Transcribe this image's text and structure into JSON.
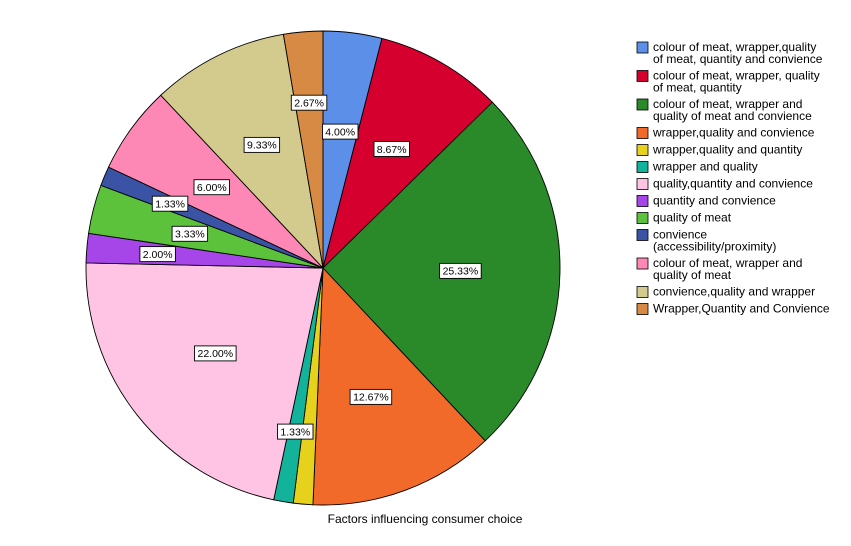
{
  "chart_data": {
    "type": "pie",
    "title": "",
    "caption": "Factors influencing consumer choice",
    "legend_position": "right",
    "slices": [
      {
        "label": [
          "colour of  meat, wrapper,quality",
          "of meat, quantity and convience"
        ],
        "value": 4.0,
        "display": "4.00%",
        "color": "#5b8fe8"
      },
      {
        "label": [
          "colour of meat, wrapper, quality",
          "of meat, quantity"
        ],
        "value": 8.67,
        "display": "8.67%",
        "color": "#d6002f"
      },
      {
        "label": [
          "colour of meat, wrapper and",
          "quality of meat and convience"
        ],
        "value": 25.33,
        "display": "25.33%",
        "color": "#2a8a2a"
      },
      {
        "label": [
          "wrapper,quality and convience"
        ],
        "value": 12.67,
        "display": "12.67%",
        "color": "#f26a2a"
      },
      {
        "label": [
          "wrapper,quality and quantity"
        ],
        "value": 1.33,
        "display": "",
        "color": "#e6d21c"
      },
      {
        "label": [
          "wrapper and quality"
        ],
        "value": 1.33,
        "display": "1.33%",
        "color": "#12b39a"
      },
      {
        "label": [
          "quality,quantity and convience"
        ],
        "value": 22.0,
        "display": "22.00%",
        "color": "#ffc4e4"
      },
      {
        "label": [
          "quantity and convience"
        ],
        "value": 2.0,
        "display": "2.00%",
        "color": "#a645e8"
      },
      {
        "label": [
          "quality of meat"
        ],
        "value": 3.33,
        "display": "3.33%",
        "color": "#5cc23c"
      },
      {
        "label": [
          "convience",
          "(accessibility/proximity)"
        ],
        "value": 1.33,
        "display": "1.33%",
        "color": "#3a53a4"
      },
      {
        "label": [
          "colour of meat, wrapper and",
          "quality of meat"
        ],
        "value": 6.0,
        "display": "6.00%",
        "color": "#fd88b6"
      },
      {
        "label": [
          "convience,quality and wrapper"
        ],
        "value": 9.33,
        "display": "9.33%",
        "color": "#d3cb8d"
      },
      {
        "label": [
          "Wrapper,Quantity and Convience"
        ],
        "value": 2.67,
        "display": "2.67%",
        "color": "#d68a44"
      }
    ]
  }
}
